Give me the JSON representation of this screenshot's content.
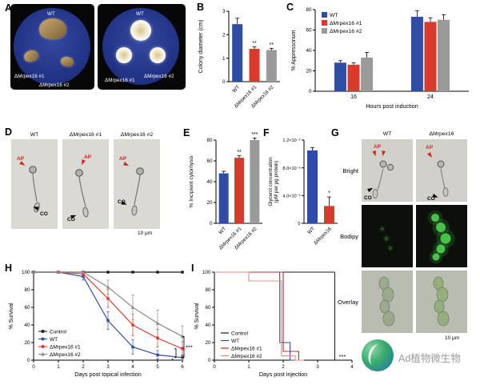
{
  "panels": {
    "A": {
      "label": "A",
      "plates": [
        {
          "labels": {
            "top": "WT",
            "bottom_left": "ΔMrpex16 #1",
            "bottom_right": "ΔMrpex16 #2"
          }
        },
        {
          "labels": {
            "top": "WT",
            "bottom_left": "ΔMrpex16 #1",
            "bottom_right": "ΔMrpex16 #2"
          }
        }
      ]
    },
    "B": {
      "label": "B"
    },
    "C": {
      "label": "C"
    },
    "D": {
      "label": "D",
      "columns": [
        "WT",
        "ΔMrpex16 #1",
        "ΔMrpex16 #2"
      ],
      "annotations": {
        "ap": "AP",
        "co": "CO"
      },
      "scale_bar": "10 μm"
    },
    "E": {
      "label": "E"
    },
    "F": {
      "label": "F"
    },
    "G": {
      "label": "G",
      "columns": [
        "WT",
        "ΔMrpex16"
      ],
      "rows": [
        "Bright",
        "Bodipy",
        "Overlay"
      ],
      "annotations": {
        "ap": "AP",
        "co": "CO"
      },
      "scale_bar": "10 μm"
    },
    "H": {
      "label": "H"
    },
    "I": {
      "label": "I"
    }
  },
  "footer": {
    "brand": "Ad植物微生物"
  },
  "chart_data": [
    {
      "panel": "B",
      "type": "bar",
      "categories": [
        "WT",
        "ΔMrpex16 #1",
        "ΔMrpex16 #2"
      ],
      "values": [
        2.45,
        1.4,
        1.35
      ],
      "errors": [
        0.25,
        0.08,
        0.07
      ],
      "sig": [
        "",
        "**",
        "**"
      ],
      "colors": [
        "#2f4da8",
        "#d93a2b",
        "#9a9a9a"
      ],
      "ylabel": "Colony diameter (cm)",
      "ylim": [
        0,
        3
      ],
      "yticks": [
        0,
        1,
        2,
        3
      ]
    },
    {
      "panel": "C",
      "type": "grouped_bar",
      "categories": [
        "16",
        "24"
      ],
      "series": [
        {
          "name": "WT",
          "color": "#2f4da8",
          "values": [
            28,
            73
          ],
          "errors": [
            2,
            6
          ]
        },
        {
          "name": "ΔMrpex16 #1",
          "color": "#d93a2b",
          "values": [
            26,
            68
          ],
          "errors": [
            2,
            4
          ]
        },
        {
          "name": "ΔMrpex16 #2",
          "color": "#9a9a9a",
          "values": [
            33,
            70
          ],
          "errors": [
            5,
            5
          ]
        }
      ],
      "ylabel": "% Appressorium",
      "xlabel": "Hours post induction",
      "ylim": [
        0,
        80
      ],
      "yticks": [
        0,
        20,
        40,
        60,
        80
      ],
      "legend_position": "top-left"
    },
    {
      "panel": "E",
      "type": "bar",
      "categories": [
        "WT",
        "ΔMrpex16 #1",
        "ΔMrpex16 #2"
      ],
      "values": [
        48,
        63,
        80
      ],
      "errors": [
        2,
        2,
        2
      ],
      "sig": [
        "",
        "**",
        "***"
      ],
      "colors": [
        "#2f4da8",
        "#d93a2b",
        "#9a9a9a"
      ],
      "ylabel": "% Incipient cytorhysis",
      "ylim": [
        0,
        80
      ],
      "yticks": [
        0,
        20,
        40,
        60,
        80
      ]
    },
    {
      "panel": "F",
      "type": "bar",
      "categories": [
        "WT",
        "ΔMrpex16"
      ],
      "values": [
        0.0105,
        0.0025
      ],
      "errors": [
        0.0004,
        0.0013
      ],
      "sig": [
        "",
        "*"
      ],
      "colors": [
        "#2f4da8",
        "#d93a2b"
      ],
      "ylabel": "Glycerol concentration (μM per μg protein)",
      "ylim": [
        0,
        0.012
      ],
      "yticks": [
        0,
        0.004,
        0.008,
        0.012
      ],
      "ytick_labels": [
        "0",
        "4.0×10⁻³",
        "8.0×10⁻³",
        "1.2×10⁻²"
      ]
    },
    {
      "panel": "H",
      "type": "line",
      "x": [
        0,
        1,
        2,
        3,
        4,
        5,
        6
      ],
      "xlim": [
        0,
        6
      ],
      "xticks": [
        0,
        1,
        2,
        3,
        4,
        5,
        6
      ],
      "series": [
        {
          "name": "Control",
          "color": "#1a1a1a",
          "marker": "square",
          "values": [
            100,
            100,
            100,
            100,
            100,
            100,
            100
          ],
          "errors": [
            0,
            0,
            0,
            0,
            0,
            0,
            0
          ]
        },
        {
          "name": "WT",
          "color": "#2f4da8",
          "marker": "square",
          "values": [
            100,
            100,
            95,
            45,
            15,
            6,
            3
          ],
          "errors": [
            0,
            0,
            4,
            10,
            8,
            5,
            3
          ]
        },
        {
          "name": "ΔMrpex16 #1",
          "color": "#d93a2b",
          "marker": "square",
          "values": [
            100,
            100,
            98,
            70,
            40,
            25,
            13
          ],
          "errors": [
            0,
            0,
            3,
            10,
            12,
            10,
            8
          ]
        },
        {
          "name": "ΔMrpex16 #2",
          "color": "#8c8c8c",
          "marker": "triangle",
          "values": [
            100,
            100,
            100,
            83,
            60,
            42,
            27
          ],
          "errors": [
            0,
            0,
            0,
            8,
            14,
            15,
            12
          ]
        }
      ],
      "ylabel": "% Survival",
      "xlabel": "Days post topical infection",
      "ylim": [
        0,
        100
      ],
      "yticks": [
        0,
        20,
        40,
        60,
        80,
        100
      ],
      "sig": [
        "***",
        "*"
      ]
    },
    {
      "panel": "I",
      "type": "step",
      "xlim": [
        0,
        4
      ],
      "xticks": [
        0,
        1,
        2,
        3,
        4
      ],
      "series": [
        {
          "name": "Control",
          "color": "#1a1a1a",
          "points": [
            [
              0,
              100
            ],
            [
              3.5,
              100
            ]
          ]
        },
        {
          "name": "WT",
          "color": "#2f4da8",
          "points": [
            [
              0,
              100
            ],
            [
              1.9,
              100
            ],
            [
              1.9,
              20
            ],
            [
              2.2,
              20
            ],
            [
              2.2,
              0
            ],
            [
              2.6,
              0
            ]
          ]
        },
        {
          "name": "ΔMrpex16 #1",
          "color": "#b03028",
          "points": [
            [
              0,
              100
            ],
            [
              2,
              100
            ],
            [
              2,
              10
            ],
            [
              2.45,
              10
            ],
            [
              2.45,
              0
            ],
            [
              2.6,
              0
            ]
          ]
        },
        {
          "name": "ΔMrpex16 #2",
          "color": "#ec8b80",
          "points": [
            [
              0,
              100
            ],
            [
              1,
              100
            ],
            [
              1,
              90
            ],
            [
              1.95,
              90
            ],
            [
              1.95,
              5
            ],
            [
              2.35,
              5
            ],
            [
              2.35,
              0
            ],
            [
              2.6,
              0
            ]
          ]
        }
      ],
      "ylabel": "% Survival",
      "xlabel": "Days post injection",
      "ylim": [
        0,
        100
      ],
      "yticks": [
        0,
        20,
        40,
        60,
        80,
        100
      ],
      "sig": "***"
    }
  ]
}
